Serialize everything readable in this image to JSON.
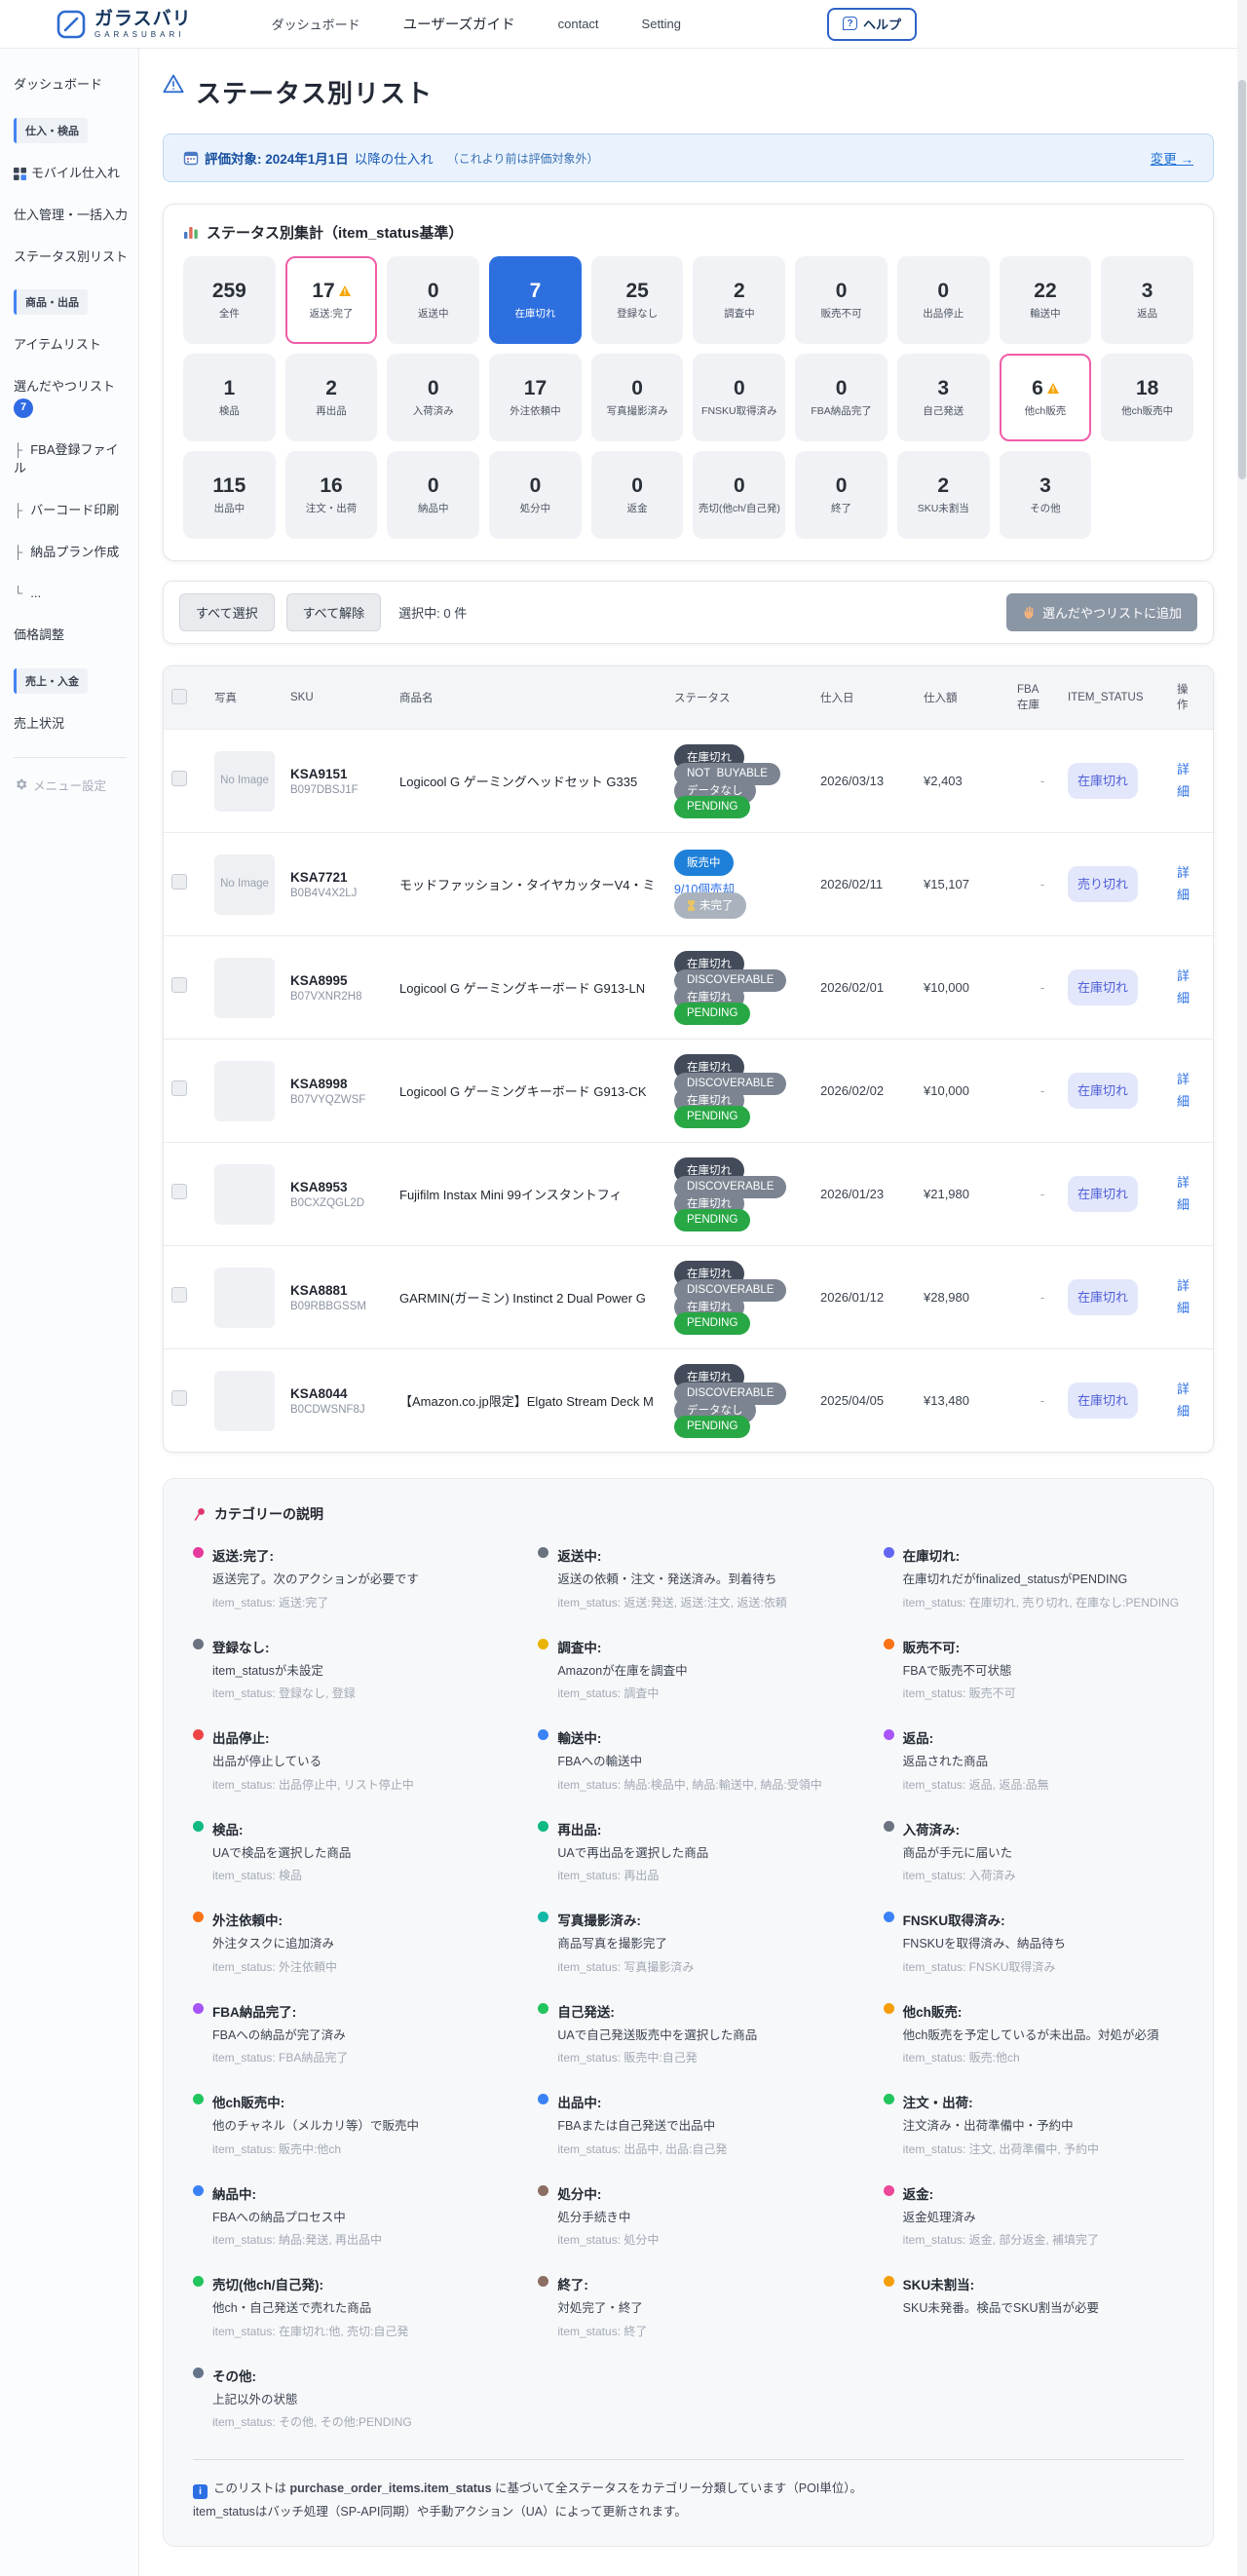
{
  "header": {
    "brand": "ガラスバリ",
    "brand_sub": "GARASUBARI",
    "nav": [
      "ダッシュボード",
      "ユーザーズガイド",
      "contact",
      "Setting"
    ],
    "help_label": "ヘルプ"
  },
  "sidebar": {
    "items": [
      {
        "type": "link",
        "label": "ダッシュボード"
      },
      {
        "type": "section",
        "label": "仕入・検品"
      },
      {
        "type": "link",
        "label": "モバイル仕入れ",
        "icon": "grid"
      },
      {
        "type": "link",
        "label": "仕入管理・一括入力"
      },
      {
        "type": "link",
        "label": "ステータス別リスト",
        "active": true
      },
      {
        "type": "section",
        "label": "商品・出品"
      },
      {
        "type": "link",
        "label": "アイテムリスト"
      },
      {
        "type": "link",
        "label": "選んだやつリスト",
        "badge": "7"
      },
      {
        "type": "tree",
        "branch": "├",
        "label": "FBA登録ファイル"
      },
      {
        "type": "tree",
        "branch": "├",
        "label": "バーコード印刷"
      },
      {
        "type": "tree",
        "branch": "├",
        "label": "納品プラン作成"
      },
      {
        "type": "tree",
        "branch": "└",
        "label": "..."
      },
      {
        "type": "link",
        "label": "価格調整"
      },
      {
        "type": "section",
        "label": "売上・入金"
      },
      {
        "type": "link",
        "label": "売上状況"
      },
      {
        "type": "divider"
      },
      {
        "type": "muted",
        "label": "メニュー設定",
        "icon": "gear"
      }
    ]
  },
  "page": {
    "title": "ステータス別リスト"
  },
  "eval_bar": {
    "label_bold": "評価対象: 2024年1月1日",
    "label_rest": "以降の仕入れ",
    "note": "（これより前は評価対象外）",
    "change_link": "変更 →"
  },
  "summary": {
    "title": "ステータス別集計（item_status基準）",
    "cards": [
      {
        "count": "259",
        "label": "全件"
      },
      {
        "count": "17",
        "label": "返送:完了",
        "variant": "alert"
      },
      {
        "count": "0",
        "label": "返送中"
      },
      {
        "count": "7",
        "label": "在庫切れ",
        "variant": "selected"
      },
      {
        "count": "25",
        "label": "登録なし"
      },
      {
        "count": "2",
        "label": "調査中"
      },
      {
        "count": "0",
        "label": "販売不可"
      },
      {
        "count": "0",
        "label": "出品停止"
      },
      {
        "count": "22",
        "label": "輸送中"
      },
      {
        "count": "3",
        "label": "返品"
      },
      {
        "count": "1",
        "label": "検品"
      },
      {
        "count": "2",
        "label": "再出品"
      },
      {
        "count": "0",
        "label": "入荷済み"
      },
      {
        "count": "17",
        "label": "外注依頼中"
      },
      {
        "count": "0",
        "label": "写真撮影済み"
      },
      {
        "count": "0",
        "label": "FNSKU取得済み"
      },
      {
        "count": "0",
        "label": "FBA納品完了"
      },
      {
        "count": "3",
        "label": "自己発送"
      },
      {
        "count": "6",
        "label": "他ch販売",
        "variant": "alert"
      },
      {
        "count": "18",
        "label": "他ch販売中"
      },
      {
        "count": "115",
        "label": "出品中"
      },
      {
        "count": "16",
        "label": "注文・出荷"
      },
      {
        "count": "0",
        "label": "納品中"
      },
      {
        "count": "0",
        "label": "処分中"
      },
      {
        "count": "0",
        "label": "返金"
      },
      {
        "count": "0",
        "label": "売切(他ch/自己発)"
      },
      {
        "count": "0",
        "label": "終了"
      },
      {
        "count": "2",
        "label": "SKU未割当"
      },
      {
        "count": "3",
        "label": "その他"
      }
    ]
  },
  "actions": {
    "select_all": "すべて選択",
    "deselect_all": "すべて解除",
    "selected_text": "選択中: 0 件",
    "add_button": "選んだやつリストに追加"
  },
  "table": {
    "headers": [
      "",
      "写真",
      "SKU",
      "商品名",
      "ステータス",
      "仕入日",
      "仕入額",
      "FBA在庫",
      "ITEM_STATUS",
      "操作"
    ],
    "ops_label": "詳細",
    "rows": [
      {
        "sku": "KSA9151",
        "asin": "B097DBSJ1F",
        "name": "Logicool G ゲーミングヘッドセット G335",
        "photo": "No Image",
        "badges": [
          {
            "t": "在庫切れ",
            "v": "dark"
          },
          {
            "t": "NOT_BUYABLE",
            "v": "gray"
          },
          {
            "t": "データなし",
            "v": "gray"
          },
          {
            "t": "PENDING",
            "v": "green"
          }
        ],
        "date": "2026/03/13",
        "price": "¥2,403",
        "fba": "-",
        "item_status": "在庫切れ"
      },
      {
        "sku": "KSA7721",
        "asin": "B0B4V4X2LJ",
        "name": "モッドファッション・タイヤカッターV4・ミ",
        "photo": "No Image",
        "badges": [
          {
            "t": "販売中",
            "v": "blue"
          },
          {
            "t": "9/10個売却",
            "v": "link"
          },
          {
            "t": "未完了",
            "v": "muted",
            "icon": "hourglass"
          }
        ],
        "date": "2026/02/11",
        "price": "¥15,107",
        "fba": "-",
        "item_status": "売り切れ"
      },
      {
        "sku": "KSA8995",
        "asin": "B07VXNR2H8",
        "name": "Logicool G ゲーミングキーボード G913-LN",
        "photo": "",
        "badges": [
          {
            "t": "在庫切れ",
            "v": "dark"
          },
          {
            "t": "DISCOVERABLE",
            "v": "gray"
          },
          {
            "t": "在庫切れ",
            "v": "gray"
          },
          {
            "t": "PENDING",
            "v": "green"
          }
        ],
        "date": "2026/02/01",
        "price": "¥10,000",
        "fba": "-",
        "item_status": "在庫切れ"
      },
      {
        "sku": "KSA8998",
        "asin": "B07VYQZWSF",
        "name": "Logicool G ゲーミングキーボード G913-CK",
        "photo": "",
        "badges": [
          {
            "t": "在庫切れ",
            "v": "dark"
          },
          {
            "t": "DISCOVERABLE",
            "v": "gray"
          },
          {
            "t": "在庫切れ",
            "v": "gray"
          },
          {
            "t": "PENDING",
            "v": "green"
          }
        ],
        "date": "2026/02/02",
        "price": "¥10,000",
        "fba": "-",
        "item_status": "在庫切れ"
      },
      {
        "sku": "KSA8953",
        "asin": "B0CXZQGL2D",
        "name": "Fujifilm Instax Mini 99インスタントフィ",
        "photo": "",
        "badges": [
          {
            "t": "在庫切れ",
            "v": "dark"
          },
          {
            "t": "DISCOVERABLE",
            "v": "gray"
          },
          {
            "t": "在庫切れ",
            "v": "gray"
          },
          {
            "t": "PENDING",
            "v": "green"
          }
        ],
        "date": "2026/01/23",
        "price": "¥21,980",
        "fba": "-",
        "item_status": "在庫切れ"
      },
      {
        "sku": "KSA8881",
        "asin": "B09RBBGSSM",
        "name": "GARMIN(ガーミン) Instinct 2 Dual Power G",
        "photo": "",
        "badges": [
          {
            "t": "在庫切れ",
            "v": "dark"
          },
          {
            "t": "DISCOVERABLE",
            "v": "gray"
          },
          {
            "t": "在庫切れ",
            "v": "gray"
          },
          {
            "t": "PENDING",
            "v": "green"
          }
        ],
        "date": "2026/01/12",
        "price": "¥28,980",
        "fba": "-",
        "item_status": "在庫切れ"
      },
      {
        "sku": "KSA8044",
        "asin": "B0CDWSNF8J",
        "name": "【Amazon.co.jp限定】Elgato Stream Deck M",
        "photo": "",
        "badges": [
          {
            "t": "在庫切れ",
            "v": "dark"
          },
          {
            "t": "DISCOVERABLE",
            "v": "gray"
          },
          {
            "t": "データなし",
            "v": "gray"
          },
          {
            "t": "PENDING",
            "v": "green"
          }
        ],
        "date": "2025/04/05",
        "price": "¥13,480",
        "fba": "-",
        "item_status": "在庫切れ"
      }
    ]
  },
  "legend": {
    "title": "カテゴリーの説明",
    "items": [
      {
        "color": "#e5399e",
        "title": "返送:完了:",
        "desc": "返送完了。次のアクションが必要です",
        "status": "item_status: 返送:完了"
      },
      {
        "color": "#6b7280",
        "title": "返送中:",
        "desc": "返送の依頼・注文・発送済み。到着待ち",
        "status": "item_status: 返送:発送, 返送:注文, 返送:依頼"
      },
      {
        "color": "#6366f1",
        "title": "在庫切れ:",
        "desc": "在庫切れだがfinalized_statusがPENDING",
        "status": "item_status: 在庫切れ, 売り切れ, 在庫なし:PENDING"
      },
      {
        "color": "#6b7280",
        "title": "登録なし:",
        "desc": "item_statusが未設定",
        "status": "item_status: 登録なし, 登録"
      },
      {
        "color": "#eab308",
        "title": "調査中:",
        "desc": "Amazonが在庫を調査中",
        "status": "item_status: 調査中"
      },
      {
        "color": "#f97316",
        "title": "販売不可:",
        "desc": "FBAで販売不可状態",
        "status": "item_status: 販売不可"
      },
      {
        "color": "#ef4444",
        "title": "出品停止:",
        "desc": "出品が停止している",
        "status": "item_status: 出品停止中, リスト停止中"
      },
      {
        "color": "#3b82f6",
        "title": "輸送中:",
        "desc": "FBAへの輸送中",
        "status": "item_status: 納品:検品中, 納品:輸送中, 納品:受領中"
      },
      {
        "color": "#a855f7",
        "title": "返品:",
        "desc": "返品された商品",
        "status": "item_status: 返品, 返品:品無"
      },
      {
        "color": "#10b981",
        "title": "検品:",
        "desc": "UAで検品を選択した商品",
        "status": "item_status: 検品"
      },
      {
        "color": "#10b981",
        "title": "再出品:",
        "desc": "UAで再出品を選択した商品",
        "status": "item_status: 再出品"
      },
      {
        "color": "#6b7280",
        "title": "入荷済み:",
        "desc": "商品が手元に届いた",
        "status": "item_status: 入荷済み"
      },
      {
        "color": "#f97316",
        "title": "外注依頼中:",
        "desc": "外注タスクに追加済み",
        "status": "item_status: 外注依頼中"
      },
      {
        "color": "#14b8a6",
        "title": "写真撮影済み:",
        "desc": "商品写真を撮影完了",
        "status": "item_status: 写真撮影済み"
      },
      {
        "color": "#3b82f6",
        "title": "FNSKU取得済み:",
        "desc": "FNSKUを取得済み、納品待ち",
        "status": "item_status: FNSKU取得済み"
      },
      {
        "color": "#a855f7",
        "title": "FBA納品完了:",
        "desc": "FBAへの納品が完了済み",
        "status": "item_status: FBA納品完了"
      },
      {
        "color": "#22c55e",
        "title": "自己発送:",
        "desc": "UAで自己発送販売中を選択した商品",
        "status": "item_status: 販売中:自己発"
      },
      {
        "color": "#f59e0b",
        "title": "他ch販売:",
        "desc": "他ch販売を予定しているが未出品。対処が必須",
        "status": "item_status: 販売:他ch"
      },
      {
        "color": "#22c55e",
        "title": "他ch販売中:",
        "desc": "他のチャネル（メルカリ等）で販売中",
        "status": "item_status: 販売中:他ch"
      },
      {
        "color": "#3b82f6",
        "title": "出品中:",
        "desc": "FBAまたは自己発送で出品中",
        "status": "item_status: 出品中, 出品:自己発"
      },
      {
        "color": "#22c55e",
        "title": "注文・出荷:",
        "desc": "注文済み・出荷準備中・予約中",
        "status": "item_status: 注文, 出荷準備中, 予約中"
      },
      {
        "color": "#3b82f6",
        "title": "納品中:",
        "desc": "FBAへの納品プロセス中",
        "status": "item_status: 納品:発送, 再出品中"
      },
      {
        "color": "#8d6e63",
        "title": "処分中:",
        "desc": "処分手続き中",
        "status": "item_status: 処分中"
      },
      {
        "color": "#ec4899",
        "title": "返金:",
        "desc": "返金処理済み",
        "status": "item_status: 返金, 部分返金, 補填完了"
      },
      {
        "color": "#22c55e",
        "title": "売切(他ch/自己発):",
        "desc": "他ch・自己発送で売れた商品",
        "status": "item_status: 在庫切れ:他, 売切:自己発"
      },
      {
        "color": "#8d6e63",
        "title": "終了:",
        "desc": "対処完了・終了",
        "status": "item_status: 終了"
      },
      {
        "color": "#f59e0b",
        "title": "SKU未割当:",
        "desc": "SKU未発番。検品でSKU割当が必要",
        "status": ""
      },
      {
        "color": "#64748b",
        "title": "その他:",
        "desc": "上記以外の状態",
        "status": "item_status: その他, その他:PENDING"
      }
    ]
  },
  "footer": {
    "line1_pre": "このリストは ",
    "line1_code": "purchase_order_items.item_status",
    "line1_post": " に基づいて全ステータスをカテゴリー分類しています（POI単位）。",
    "line2": "item_statusはバッチ処理（SP-API同期）や手動アクション（UA）によって更新されます。"
  }
}
